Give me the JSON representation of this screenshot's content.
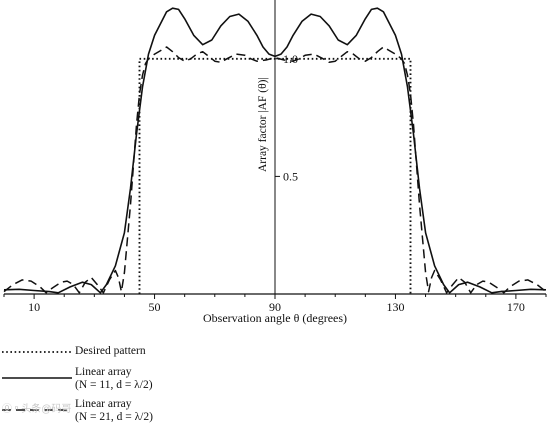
{
  "chart_data": {
    "type": "line",
    "xlabel": "Observation angle θ (degrees)",
    "ylabel": "Array factor |AF (θ)|",
    "xlim": [
      0,
      180
    ],
    "ylim": [
      0,
      1.25
    ],
    "x_ticks": [
      10,
      50,
      90,
      130,
      170
    ],
    "y_ticks": [
      0.5,
      1.0
    ],
    "grid": false,
    "legend_placement": "below",
    "series": [
      {
        "name": "Desired pattern",
        "style": "dotted",
        "points": [
          [
            45,
            0
          ],
          [
            45,
            1.0
          ],
          [
            135,
            1.0
          ],
          [
            135,
            0
          ]
        ]
      },
      {
        "name": "Linear array\n(N = 11, d = λ/2)",
        "style": "solid",
        "points": [
          [
            0,
            0.018
          ],
          [
            5,
            0.02
          ],
          [
            10,
            0.015
          ],
          [
            15,
            0.01
          ],
          [
            18,
            0.005
          ],
          [
            22,
            0.03
          ],
          [
            26,
            0.05
          ],
          [
            29,
            0.04
          ],
          [
            32,
            0.005
          ],
          [
            34,
            0.04
          ],
          [
            37,
            0.12
          ],
          [
            40,
            0.26
          ],
          [
            42,
            0.45
          ],
          [
            44,
            0.68
          ],
          [
            46,
            0.88
          ],
          [
            48,
            1.02
          ],
          [
            50,
            1.1
          ],
          [
            52,
            1.15
          ],
          [
            54,
            1.2
          ],
          [
            56,
            1.215
          ],
          [
            58,
            1.21
          ],
          [
            60,
            1.17
          ],
          [
            63,
            1.1
          ],
          [
            66,
            1.06
          ],
          [
            69,
            1.08
          ],
          [
            72,
            1.14
          ],
          [
            75,
            1.18
          ],
          [
            78,
            1.19
          ],
          [
            81,
            1.16
          ],
          [
            84,
            1.1
          ],
          [
            86,
            1.05
          ],
          [
            88,
            1.02
          ],
          [
            90,
            1.01
          ],
          [
            92,
            1.02
          ],
          [
            94,
            1.05
          ],
          [
            96,
            1.1
          ],
          [
            99,
            1.16
          ],
          [
            102,
            1.19
          ],
          [
            105,
            1.18
          ],
          [
            108,
            1.14
          ],
          [
            111,
            1.08
          ],
          [
            114,
            1.06
          ],
          [
            117,
            1.1
          ],
          [
            120,
            1.17
          ],
          [
            122,
            1.21
          ],
          [
            124,
            1.215
          ],
          [
            126,
            1.2
          ],
          [
            128,
            1.15
          ],
          [
            130,
            1.1
          ],
          [
            132,
            1.02
          ],
          [
            134,
            0.88
          ],
          [
            136,
            0.68
          ],
          [
            138,
            0.45
          ],
          [
            140,
            0.26
          ],
          [
            143,
            0.12
          ],
          [
            146,
            0.04
          ],
          [
            148,
            0.005
          ],
          [
            151,
            0.04
          ],
          [
            154,
            0.05
          ],
          [
            158,
            0.03
          ],
          [
            162,
            0.005
          ],
          [
            165,
            0.01
          ],
          [
            170,
            0.015
          ],
          [
            175,
            0.02
          ],
          [
            180,
            0.018
          ]
        ]
      },
      {
        "name": "Linear array\n(N = 21, d = λ/2)",
        "style": "dashed",
        "points": [
          [
            0,
            0.01
          ],
          [
            3,
            0.04
          ],
          [
            6,
            0.06
          ],
          [
            9,
            0.055
          ],
          [
            12,
            0.03
          ],
          [
            14,
            0.005
          ],
          [
            16,
            0.025
          ],
          [
            19,
            0.05
          ],
          [
            21,
            0.055
          ],
          [
            23,
            0.04
          ],
          [
            25,
            0.005
          ],
          [
            27,
            0.05
          ],
          [
            29,
            0.07
          ],
          [
            31,
            0.04
          ],
          [
            33,
            0.005
          ],
          [
            35,
            0.06
          ],
          [
            37,
            0.1
          ],
          [
            38,
            0.07
          ],
          [
            39,
            0.01
          ],
          [
            40,
            0.09
          ],
          [
            42,
            0.38
          ],
          [
            44,
            0.72
          ],
          [
            45,
            0.85
          ],
          [
            46,
            0.93
          ],
          [
            47,
            0.98
          ],
          [
            48,
            1.0
          ],
          [
            50,
            1.02
          ],
          [
            52,
            1.035
          ],
          [
            54,
            1.05
          ],
          [
            56,
            1.03
          ],
          [
            58,
            1.005
          ],
          [
            60,
            0.99
          ],
          [
            62,
            1.0
          ],
          [
            64,
            1.02
          ],
          [
            66,
            1.03
          ],
          [
            68,
            1.01
          ],
          [
            70,
            0.99
          ],
          [
            72,
            0.985
          ],
          [
            74,
            1.0
          ],
          [
            77,
            1.02
          ],
          [
            80,
            1.015
          ],
          [
            82,
            1.0
          ],
          [
            84,
            0.99
          ],
          [
            87,
            0.995
          ],
          [
            90,
            1.005
          ],
          [
            93,
            0.995
          ],
          [
            96,
            0.99
          ],
          [
            98,
            1.0
          ],
          [
            100,
            1.015
          ],
          [
            103,
            1.02
          ],
          [
            106,
            1.0
          ],
          [
            108,
            0.985
          ],
          [
            110,
            0.99
          ],
          [
            112,
            1.01
          ],
          [
            114,
            1.03
          ],
          [
            116,
            1.02
          ],
          [
            118,
            1.0
          ],
          [
            120,
            0.99
          ],
          [
            122,
            1.005
          ],
          [
            124,
            1.03
          ],
          [
            126,
            1.05
          ],
          [
            128,
            1.035
          ],
          [
            130,
            1.02
          ],
          [
            132,
            1.0
          ],
          [
            133,
            0.98
          ],
          [
            134,
            0.93
          ],
          [
            135,
            0.85
          ],
          [
            136,
            0.72
          ],
          [
            138,
            0.38
          ],
          [
            140,
            0.09
          ],
          [
            141,
            0.01
          ],
          [
            142,
            0.07
          ],
          [
            143,
            0.1
          ],
          [
            145,
            0.06
          ],
          [
            147,
            0.005
          ],
          [
            149,
            0.04
          ],
          [
            151,
            0.07
          ],
          [
            153,
            0.05
          ],
          [
            155,
            0.005
          ],
          [
            157,
            0.04
          ],
          [
            159,
            0.055
          ],
          [
            161,
            0.05
          ],
          [
            164,
            0.025
          ],
          [
            166,
            0.005
          ],
          [
            168,
            0.03
          ],
          [
            171,
            0.055
          ],
          [
            174,
            0.06
          ],
          [
            177,
            0.04
          ],
          [
            180,
            0.01
          ]
        ]
      }
    ]
  },
  "legend": [
    {
      "style": "dotted",
      "lines": [
        "Desired pattern"
      ]
    },
    {
      "style": "solid",
      "lines": [
        "Linear array",
        "(N = 11, d = λ/2)"
      ]
    },
    {
      "style": "dashed",
      "lines": [
        "Linear array",
        "(N = 21, d = λ/2)"
      ]
    }
  ],
  "watermark": "⓪ ⁿ 头条@码哥"
}
